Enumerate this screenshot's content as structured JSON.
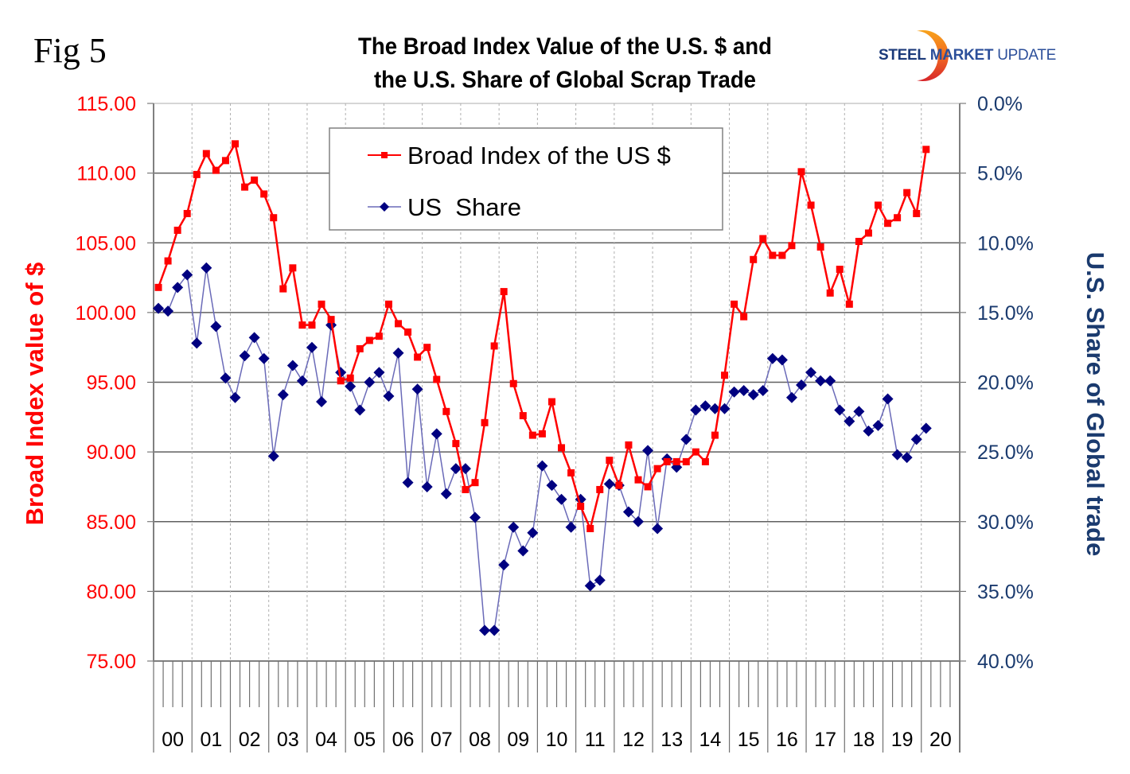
{
  "figure_label": "Fig 5",
  "title_line1": "The Broad Index Value of the U.S. $ and",
  "title_line2": "the U.S. Share of Global Scrap Trade",
  "logo": {
    "word1": "STEEL",
    "word2": "MARKET",
    "word3": "UPDATE"
  },
  "colors": {
    "index": "#ff0000",
    "share": "#000080",
    "share_line": "#6a6ab8",
    "right_axis": "#1a3a6e",
    "grid": "#808080"
  },
  "chart_data": {
    "type": "line",
    "title": "The Broad Index Value of the U.S. $ and the U.S. Share of Global Scrap Trade",
    "xlabel": "",
    "ylabel": "Broad Index value of $",
    "ylabel_right": "U.S. Share of Global trade",
    "ylim": [
      75,
      115
    ],
    "ylim_right": [
      0,
      40
    ],
    "right_axis_inverted": true,
    "yticks": [
      "115.00",
      "110.00",
      "105.00",
      "100.00",
      "95.00",
      "90.00",
      "85.00",
      "80.00",
      "75.00"
    ],
    "yticks_right": [
      "0.0%",
      "5.0%",
      "10.0%",
      "15.0%",
      "20.0%",
      "25.0%",
      "30.0%",
      "35.0%",
      "40.0%"
    ],
    "categories": [
      "00",
      "01",
      "02",
      "03",
      "04",
      "05",
      "06",
      "07",
      "08",
      "09",
      "10",
      "11",
      "12",
      "13",
      "14",
      "15",
      "16",
      "17",
      "18",
      "19",
      "20"
    ],
    "periods_per_category": 4,
    "grid": true,
    "legend_position": "top-center",
    "series": [
      {
        "name": "Broad Index of the US $",
        "axis": "left",
        "marker": "square",
        "values": [
          101.8,
          103.7,
          105.9,
          107.1,
          109.9,
          111.4,
          110.2,
          110.9,
          112.1,
          109.0,
          109.5,
          108.5,
          106.8,
          101.7,
          103.2,
          99.1,
          99.1,
          100.6,
          99.5,
          95.1,
          95.3,
          97.4,
          98.0,
          98.3,
          100.6,
          99.2,
          98.6,
          96.8,
          97.5,
          95.2,
          92.9,
          90.6,
          87.3,
          87.8,
          92.1,
          97.6,
          101.5,
          94.9,
          92.6,
          91.2,
          91.3,
          93.6,
          90.3,
          88.5,
          86.1,
          84.5,
          87.3,
          89.4,
          87.6,
          90.5,
          88.0,
          87.5,
          88.8,
          89.3,
          89.3,
          89.3,
          90.0,
          89.3,
          91.2,
          95.5,
          100.6,
          99.7,
          103.8,
          105.3,
          104.1,
          104.1,
          104.8,
          110.1,
          107.7,
          104.7,
          101.4,
          103.1,
          100.6,
          105.1,
          105.7,
          107.7,
          106.4,
          106.8,
          108.6,
          107.1,
          111.7
        ]
      },
      {
        "name": "US  Share",
        "axis": "right",
        "marker": "diamond",
        "unit": "%",
        "values": [
          14.7,
          14.9,
          13.2,
          12.3,
          17.2,
          11.8,
          16.0,
          19.7,
          21.1,
          18.1,
          16.8,
          18.3,
          25.3,
          20.9,
          18.8,
          19.9,
          17.5,
          21.4,
          15.9,
          19.3,
          20.3,
          22.0,
          20.0,
          19.3,
          21.0,
          17.9,
          27.2,
          20.5,
          27.5,
          23.7,
          28.0,
          26.2,
          26.2,
          29.7,
          37.8,
          37.8,
          33.1,
          30.4,
          32.1,
          30.8,
          26.0,
          27.4,
          28.4,
          30.4,
          28.4,
          34.6,
          34.2,
          27.3,
          27.4,
          29.3,
          30.0,
          24.9,
          30.5,
          25.5,
          26.1,
          24.1,
          22.0,
          21.7,
          21.9,
          21.9,
          20.7,
          20.6,
          20.9,
          20.6,
          18.3,
          18.4,
          21.1,
          20.2,
          19.3,
          19.9,
          19.9,
          22.0,
          22.8,
          22.1,
          23.5,
          23.1,
          21.2,
          25.2,
          25.4,
          24.1,
          23.3
        ]
      }
    ]
  }
}
